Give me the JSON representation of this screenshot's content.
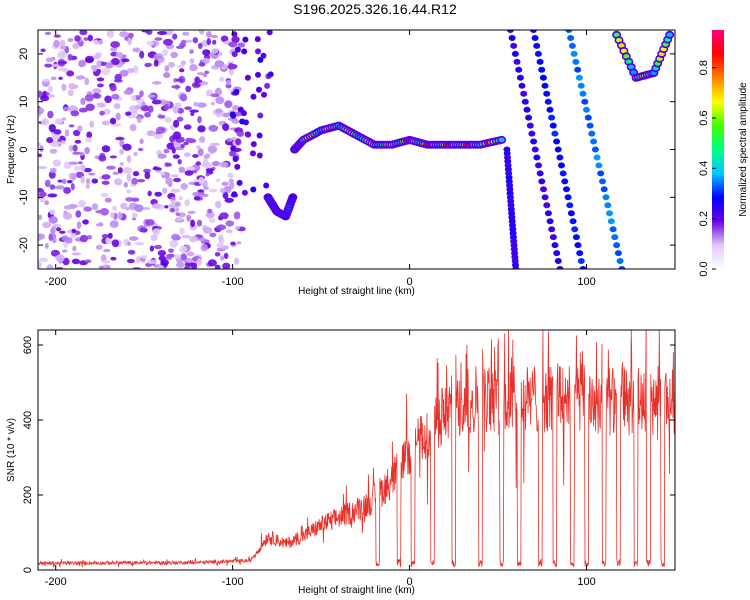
{
  "title": "S196.2025.326.16.44.R12",
  "chart_data": [
    {
      "type": "heatmap",
      "xlabel": "Height of straight line (km)",
      "ylabel": "Frequency (Hz)",
      "xlim": [
        -210,
        150
      ],
      "ylim": [
        -25,
        25
      ],
      "x_ticks": [
        -200,
        -100,
        0,
        100
      ],
      "y_ticks": [
        -20,
        -10,
        0,
        10,
        20
      ],
      "colorbar": {
        "label": "Normalized spectral amplitude",
        "range": [
          0,
          0.95
        ],
        "ticks": [
          0.0,
          0.2,
          0.4,
          0.6,
          0.8
        ]
      },
      "features": [
        {
          "name": "noise",
          "x_range": [
            -210,
            -95
          ],
          "f_range": [
            -25,
            25
          ],
          "amplitude": 0.1
        },
        {
          "name": "trace",
          "points": [
            [
              -65,
              0
            ],
            [
              -60,
              2
            ],
            [
              -50,
              4
            ],
            [
              -40,
              5
            ],
            [
              -30,
              3
            ],
            [
              -20,
              1
            ],
            [
              -10,
              1
            ],
            [
              0,
              2
            ],
            [
              10,
              1
            ],
            [
              20,
              1
            ],
            [
              30,
              1
            ],
            [
              40,
              1
            ],
            [
              52,
              2
            ]
          ],
          "peak_amplitude": 0.95
        },
        {
          "name": "lower-trace",
          "points": [
            [
              -80,
              -10
            ],
            [
              -75,
              -13
            ],
            [
              -70,
              -14
            ],
            [
              -66,
              -10
            ]
          ],
          "peak_amplitude": 0.4
        },
        {
          "name": "streak-1",
          "points": [
            [
              55,
              0
            ],
            [
              60,
              -25
            ]
          ],
          "amplitude": 0.25
        },
        {
          "name": "streak-2",
          "points": [
            [
              57,
              25
            ],
            [
              85,
              -25
            ]
          ],
          "amplitude": 0.25
        },
        {
          "name": "streak-3",
          "points": [
            [
              70,
              25
            ],
            [
              98,
              -25
            ]
          ],
          "amplitude": 0.3
        },
        {
          "name": "streak-4",
          "points": [
            [
              90,
              25
            ],
            [
              120,
              -25
            ]
          ],
          "amplitude": 0.35
        },
        {
          "name": "arc",
          "points": [
            [
              117,
              24
            ],
            [
              128,
              15
            ],
            [
              138,
              16
            ],
            [
              147,
              24
            ]
          ],
          "peak_amplitude": 0.9
        }
      ]
    },
    {
      "type": "line",
      "xlabel": "Height of straight line (km)",
      "ylabel": "SNR (10 * v/v)",
      "xlim": [
        -210,
        150
      ],
      "ylim": [
        0,
        640
      ],
      "x_ticks": [
        -200,
        -100,
        0,
        100
      ],
      "y_ticks": [
        0,
        200,
        400,
        600
      ],
      "color": "#e8302a",
      "trend": [
        [
          -210,
          18
        ],
        [
          -120,
          20
        ],
        [
          -90,
          25
        ],
        [
          -80,
          90
        ],
        [
          -70,
          70
        ],
        [
          -60,
          90
        ],
        [
          -50,
          120
        ],
        [
          -40,
          140
        ],
        [
          -30,
          160
        ],
        [
          -20,
          190
        ],
        [
          -10,
          240
        ],
        [
          0,
          320
        ],
        [
          10,
          360
        ],
        [
          20,
          420
        ],
        [
          30,
          450
        ],
        [
          40,
          460
        ],
        [
          60,
          450
        ],
        [
          80,
          460
        ],
        [
          100,
          455
        ],
        [
          120,
          450
        ],
        [
          150,
          450
        ]
      ],
      "dropouts_x": [
        -18,
        -6,
        2,
        13,
        25,
        40,
        52,
        62,
        74,
        82,
        92,
        100,
        110,
        118,
        128,
        135,
        143
      ]
    }
  ]
}
